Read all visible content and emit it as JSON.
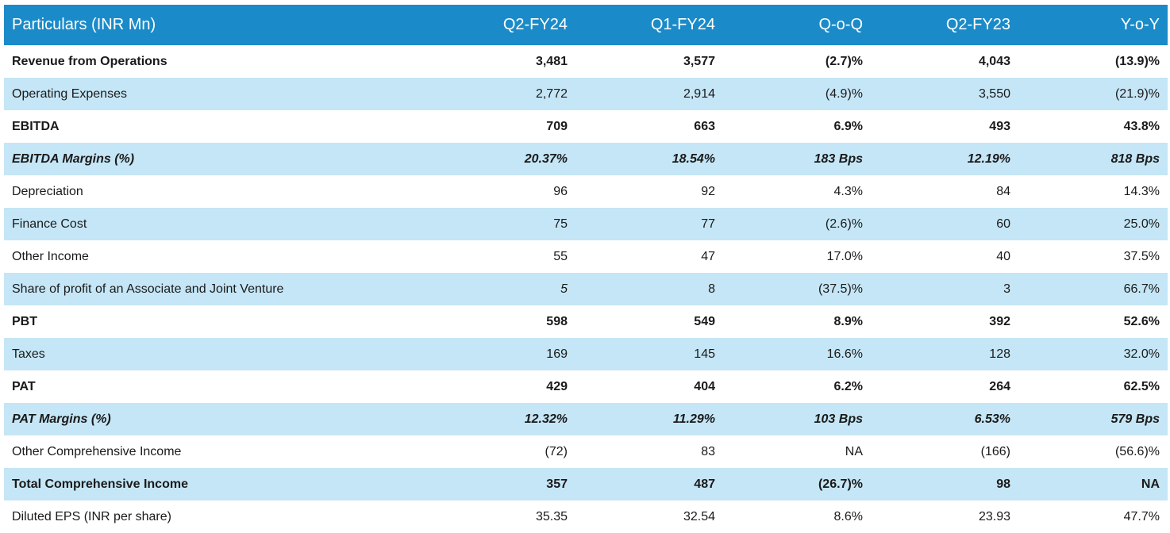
{
  "header": {
    "particulars": "Particulars (INR Mn)",
    "columns": [
      "Q2-FY24",
      "Q1-FY24",
      "Q-o-Q",
      "Q2-FY23",
      "Y-o-Y"
    ]
  },
  "rows": [
    {
      "label": "Revenue from Operations",
      "values": [
        "3,481",
        "3,577",
        "(2.7)%",
        "4,043",
        "(13.9)%"
      ],
      "style": "bold",
      "shaded": false
    },
    {
      "label": "Operating Expenses",
      "values": [
        "2,772",
        "2,914",
        "(4.9)%",
        "3,550",
        "(21.9)%"
      ],
      "style": "normal",
      "shaded": true
    },
    {
      "label": "EBITDA",
      "values": [
        "709",
        "663",
        "6.9%",
        "493",
        "43.8%"
      ],
      "style": "bold",
      "shaded": false
    },
    {
      "label": "EBITDA Margins (%)",
      "values": [
        "20.37%",
        "18.54%",
        "183 Bps",
        "12.19%",
        "818 Bps"
      ],
      "style": "bold-italic",
      "shaded": true
    },
    {
      "label": "Depreciation",
      "values": [
        "96",
        "92",
        "4.3%",
        "84",
        "14.3%"
      ],
      "style": "normal",
      "shaded": false
    },
    {
      "label": "Finance Cost",
      "values": [
        "75",
        "77",
        "(2.6)%",
        "60",
        "25.0%"
      ],
      "style": "normal",
      "shaded": true
    },
    {
      "label": "Other Income",
      "values": [
        "55",
        "47",
        "17.0%",
        "40",
        "37.5%"
      ],
      "style": "normal",
      "shaded": false
    },
    {
      "label": "Share of profit of an Associate and Joint Venture",
      "values": [
        "5",
        "8",
        "(37.5)%",
        "3",
        "66.7%"
      ],
      "style": "normal",
      "shaded": true
    },
    {
      "label": "PBT",
      "values": [
        "598",
        "549",
        "8.9%",
        "392",
        "52.6%"
      ],
      "style": "bold",
      "shaded": false
    },
    {
      "label": "Taxes",
      "values": [
        "169",
        "145",
        "16.6%",
        "128",
        "32.0%"
      ],
      "style": "normal",
      "shaded": true
    },
    {
      "label": "PAT",
      "values": [
        "429",
        "404",
        "6.2%",
        "264",
        "62.5%"
      ],
      "style": "bold",
      "shaded": false
    },
    {
      "label": "PAT Margins (%)",
      "values": [
        "12.32%",
        "11.29%",
        "103 Bps",
        "6.53%",
        "579 Bps"
      ],
      "style": "bold-italic",
      "shaded": true
    },
    {
      "label": "Other Comprehensive Income",
      "values": [
        "(72)",
        "83",
        "NA",
        "(166)",
        "(56.6)%"
      ],
      "style": "normal",
      "shaded": false
    },
    {
      "label": "Total Comprehensive Income",
      "values": [
        "357",
        "487",
        "(26.7)%",
        "98",
        "NA"
      ],
      "style": "bold",
      "shaded": true
    },
    {
      "label": "Diluted EPS (INR per share)",
      "values": [
        "35.35",
        "32.54",
        "8.6%",
        "23.93",
        "47.7%"
      ],
      "style": "normal",
      "shaded": false
    }
  ],
  "colors": {
    "header_bg": "#1a8bc8",
    "header_text": "#ffffff",
    "shaded_row": "#c5e6f6",
    "plain_row": "#ffffff"
  }
}
